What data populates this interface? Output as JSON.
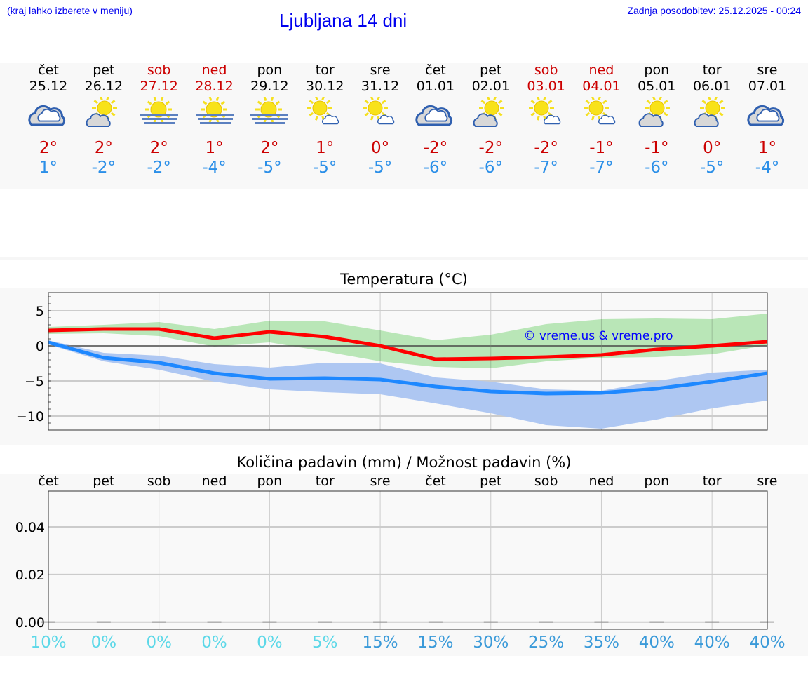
{
  "header": {
    "hint": "(kraj lahko izberete v meniju)",
    "title": "Ljubljana 14 dni",
    "updated": "Zadnja posodobitev: 25.12.2025 - 00:24"
  },
  "colors": {
    "weekend": "#cc0000",
    "weekday": "#000000",
    "max": "#cc0000",
    "min": "#2b8fe8",
    "low_prob": "#5cd8e8",
    "high_prob": "#3a9ad9"
  },
  "days": [
    {
      "name": "čet",
      "date": "25.12",
      "weekend": false,
      "icon": "cloudy-icon",
      "max": "2°",
      "min": "1°"
    },
    {
      "name": "pet",
      "date": "26.12",
      "weekend": false,
      "icon": "partly-sunny-icon",
      "max": "2°",
      "min": "-2°"
    },
    {
      "name": "sob",
      "date": "27.12",
      "weekend": true,
      "icon": "sun-fog-icon",
      "max": "2°",
      "min": "-2°"
    },
    {
      "name": "ned",
      "date": "28.12",
      "weekend": true,
      "icon": "sun-fog-icon",
      "max": "1°",
      "min": "-4°"
    },
    {
      "name": "pon",
      "date": "29.12",
      "weekend": false,
      "icon": "sun-fog-icon",
      "max": "2°",
      "min": "-5°"
    },
    {
      "name": "tor",
      "date": "30.12",
      "weekend": false,
      "icon": "sun-small-cloud-icon",
      "max": "1°",
      "min": "-5°"
    },
    {
      "name": "sre",
      "date": "31.12",
      "weekend": false,
      "icon": "sun-small-cloud-icon",
      "max": "0°",
      "min": "-5°"
    },
    {
      "name": "čet",
      "date": "01.01",
      "weekend": false,
      "icon": "cloudy-icon",
      "max": "-2°",
      "min": "-6°"
    },
    {
      "name": "pet",
      "date": "02.01",
      "weekend": false,
      "icon": "partly-sunny-icon",
      "max": "-2°",
      "min": "-6°"
    },
    {
      "name": "sob",
      "date": "03.01",
      "weekend": true,
      "icon": "sun-small-cloud-icon",
      "max": "-2°",
      "min": "-7°"
    },
    {
      "name": "ned",
      "date": "04.01",
      "weekend": true,
      "icon": "sun-small-cloud-icon",
      "max": "-1°",
      "min": "-7°"
    },
    {
      "name": "pon",
      "date": "05.01",
      "weekend": false,
      "icon": "partly-sunny-icon",
      "max": "-1°",
      "min": "-6°"
    },
    {
      "name": "tor",
      "date": "06.01",
      "weekend": false,
      "icon": "partly-sunny-icon",
      "max": "0°",
      "min": "-5°"
    },
    {
      "name": "sre",
      "date": "07.01",
      "weekend": false,
      "icon": "cloudy-icon",
      "max": "1°",
      "min": "-4°"
    }
  ],
  "chart_data": [
    {
      "type": "line",
      "title": "Temperatura (°C)",
      "ylim": [
        -12,
        7.6
      ],
      "yticks": [
        "5",
        "0",
        "−5",
        "−10"
      ],
      "ytick_values": [
        5,
        0,
        -5,
        -10
      ],
      "grid": true,
      "watermark": "© vreme.us & vreme.pro",
      "series": [
        {
          "color": "#ff0000",
          "values": [
            2.2,
            2.4,
            2.4,
            1.1,
            2.0,
            1.3,
            0.0,
            -1.9,
            -1.8,
            -1.6,
            -1.3,
            -0.5,
            0.0,
            0.6
          ]
        },
        {
          "color": "#1e88ff",
          "values": [
            0.5,
            -1.7,
            -2.4,
            -3.9,
            -4.7,
            -4.6,
            -4.8,
            -5.8,
            -6.5,
            -6.8,
            -6.7,
            -6.1,
            -5.1,
            -3.9
          ]
        }
      ],
      "bands": [
        {
          "color": "#a8e6a6",
          "upper": [
            2.7,
            3.0,
            3.4,
            2.4,
            3.6,
            3.5,
            2.2,
            0.8,
            1.6,
            3.1,
            3.8,
            3.9,
            3.8,
            4.6
          ],
          "lower": [
            1.7,
            1.8,
            1.4,
            -0.1,
            0.5,
            -0.8,
            -2.2,
            -3.0,
            -3.2,
            -2.2,
            -1.7,
            -1.6,
            -1.2,
            0.1
          ]
        },
        {
          "color": "#aec7f2",
          "upper": [
            0.8,
            -1.0,
            -1.4,
            -2.6,
            -3.1,
            -2.4,
            -2.5,
            -4.5,
            -5.1,
            -6.2,
            -6.4,
            -5.0,
            -3.8,
            -3.4
          ],
          "lower": [
            0.2,
            -2.2,
            -3.4,
            -5.1,
            -6.2,
            -6.6,
            -6.9,
            -8.2,
            -9.6,
            -11.3,
            -11.8,
            -10.5,
            -8.9,
            -7.8
          ]
        }
      ]
    },
    {
      "type": "bar",
      "title": "Količina padavin (mm) / Možnost padavin (%)",
      "ylim": [
        -0.003,
        0.055
      ],
      "yticks": [
        "0.00",
        "0.02",
        "0.04"
      ],
      "ytick_values": [
        0,
        0.02,
        0.04
      ],
      "grid": true,
      "categories": [
        "čet",
        "pet",
        "sob",
        "ned",
        "pon",
        "tor",
        "sre",
        "čet",
        "pet",
        "sob",
        "ned",
        "pon",
        "tor",
        "sre"
      ],
      "values": [
        0,
        0,
        0,
        0,
        0,
        0,
        0,
        0,
        0,
        0,
        0,
        0,
        0,
        0
      ],
      "probability": [
        "10%",
        "0%",
        "0%",
        "0%",
        "0%",
        "5%",
        "15%",
        "15%",
        "30%",
        "25%",
        "35%",
        "40%",
        "40%",
        "40%"
      ],
      "probability_values": [
        10,
        0,
        0,
        0,
        0,
        5,
        15,
        15,
        30,
        25,
        35,
        40,
        40,
        40
      ]
    }
  ]
}
